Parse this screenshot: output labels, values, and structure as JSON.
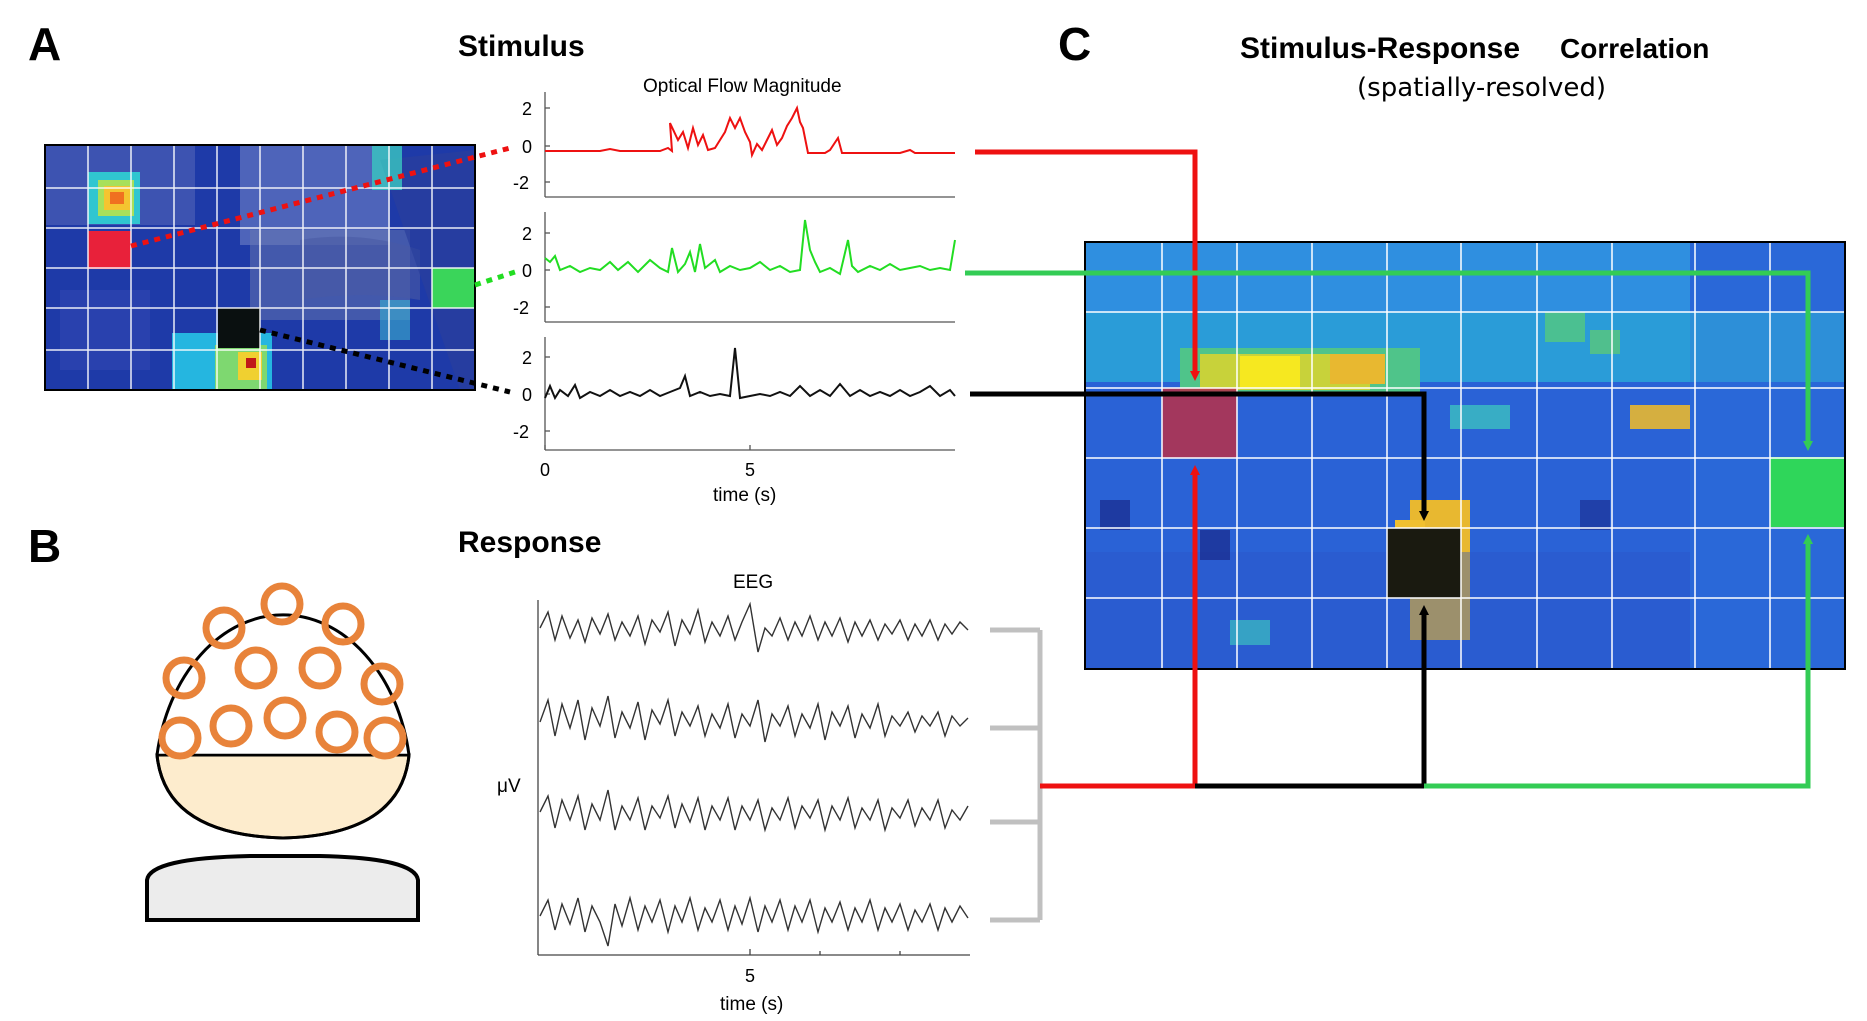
{
  "panels": {
    "a": {
      "letter": "A",
      "title": "Stimulus"
    },
    "b": {
      "letter": "B",
      "title": "Response"
    },
    "c": {
      "letter": "C",
      "title_part1": "Stimulus-Response",
      "title_part2": "Correlation",
      "subtitle": "(spatially-resolved)"
    }
  },
  "stimulus_plot": {
    "title": "Optical Flow Magnitude",
    "yticks": [
      "2",
      "0",
      "-2"
    ],
    "xticks": [
      "0",
      "5"
    ],
    "xlabel": "time (s)"
  },
  "response_plot": {
    "title": "EEG",
    "ylabel": "μV",
    "xticks": [
      "5"
    ],
    "xlabel": "time (s)"
  },
  "colors": {
    "red": "#ee1111",
    "green": "#22dd22",
    "black": "#000000",
    "arrow_green": "#33cc55",
    "electrode": "#e8833a",
    "scalp_fill": "#fdeccd",
    "bracket": "#c0c0c0"
  }
}
